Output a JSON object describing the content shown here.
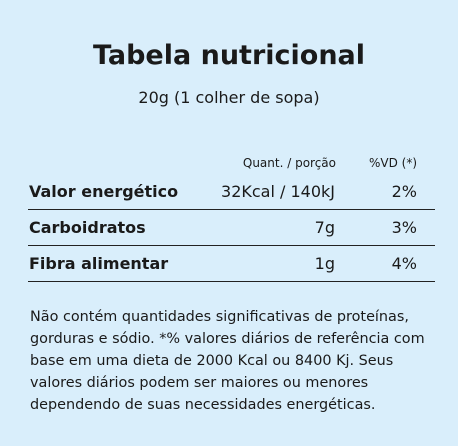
{
  "header": {
    "title": "Tabela nutricional",
    "subtitle": "20g (1 colher de sopa)"
  },
  "table": {
    "columns": [
      "Quant. / porção",
      "%VD (*)"
    ],
    "rows": [
      [
        "Valor energético",
        "32Kcal / 140kJ",
        "2%"
      ],
      [
        "Carboidratos",
        "7g",
        "3%"
      ],
      [
        "Fibra alimentar",
        "1g",
        "4%"
      ]
    ]
  },
  "footnote": "Não contém quantidades significativas de proteínas, gorduras e sódio. *% valores diários de referência com base em uma dieta de 2000 Kcal ou 8400 Kj. Seus valores diários podem ser maiores ou menores dependendo de suas necessidades energéticas."
}
